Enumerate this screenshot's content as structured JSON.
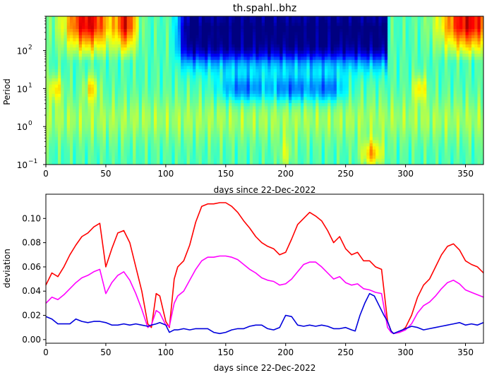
{
  "chart_data": [
    {
      "type": "heatmap",
      "title": "th.spahl..bhz",
      "xlabel": "days since 22-Dec-2022",
      "ylabel": "Period",
      "xlim": [
        0,
        365
      ],
      "ylim": [
        0.1,
        800
      ],
      "yscale": "log",
      "colormap": "jet",
      "x_ticks": [
        0,
        50,
        100,
        150,
        200,
        250,
        300,
        350
      ],
      "y_ticks": [
        {
          "value": 0.1,
          "label": "10",
          "exp": "−1"
        },
        {
          "value": 1,
          "label": "10",
          "exp": "0"
        },
        {
          "value": 10,
          "label": "10",
          "exp": "1"
        },
        {
          "value": 100,
          "label": "10",
          "exp": "2"
        }
      ]
    },
    {
      "type": "line",
      "title": "",
      "xlabel": "days since 22-Dec-2022",
      "ylabel": "deviation",
      "xlim": [
        0,
        365
      ],
      "ylim": [
        -0.003,
        0.12
      ],
      "x_ticks": [
        0,
        50,
        100,
        150,
        200,
        250,
        300,
        350
      ],
      "y_ticks": [
        "0.00",
        "0.02",
        "0.04",
        "0.06",
        "0.08",
        "0.10"
      ],
      "series": [
        {
          "color": "#ff0000",
          "x": [
            0,
            5,
            10,
            15,
            20,
            25,
            30,
            35,
            40,
            45,
            50,
            55,
            60,
            65,
            70,
            75,
            80,
            85,
            88,
            92,
            95,
            100,
            103,
            107,
            110,
            115,
            120,
            125,
            130,
            135,
            140,
            145,
            150,
            155,
            160,
            165,
            170,
            175,
            180,
            185,
            190,
            195,
            200,
            205,
            210,
            215,
            220,
            225,
            230,
            235,
            240,
            245,
            250,
            255,
            260,
            265,
            270,
            275,
            280,
            285,
            288,
            290,
            295,
            300,
            305,
            310,
            315,
            320,
            325,
            330,
            335,
            340,
            345,
            350,
            355,
            360,
            365
          ],
          "values": [
            0.045,
            0.055,
            0.052,
            0.06,
            0.07,
            0.078,
            0.085,
            0.088,
            0.093,
            0.096,
            0.06,
            0.075,
            0.088,
            0.09,
            0.08,
            0.06,
            0.04,
            0.013,
            0.01,
            0.038,
            0.036,
            0.015,
            0.01,
            0.05,
            0.06,
            0.065,
            0.078,
            0.097,
            0.11,
            0.112,
            0.112,
            0.113,
            0.113,
            0.11,
            0.105,
            0.098,
            0.092,
            0.085,
            0.08,
            0.077,
            0.075,
            0.07,
            0.072,
            0.083,
            0.095,
            0.1,
            0.105,
            0.102,
            0.098,
            0.09,
            0.08,
            0.085,
            0.075,
            0.07,
            0.072,
            0.065,
            0.065,
            0.06,
            0.058,
            0.015,
            0.007,
            0.005,
            0.006,
            0.01,
            0.02,
            0.035,
            0.045,
            0.05,
            0.06,
            0.07,
            0.077,
            0.079,
            0.074,
            0.065,
            0.062,
            0.06,
            0.055
          ]
        },
        {
          "color": "#ff00ff",
          "x": [
            0,
            5,
            10,
            15,
            20,
            25,
            30,
            35,
            40,
            45,
            50,
            55,
            60,
            65,
            70,
            75,
            80,
            85,
            88,
            92,
            95,
            100,
            103,
            107,
            110,
            115,
            120,
            125,
            130,
            135,
            140,
            145,
            150,
            155,
            160,
            165,
            170,
            175,
            180,
            185,
            190,
            195,
            200,
            205,
            210,
            215,
            220,
            225,
            230,
            235,
            240,
            245,
            250,
            255,
            260,
            265,
            270,
            275,
            280,
            285,
            288,
            290,
            295,
            300,
            305,
            310,
            315,
            320,
            325,
            330,
            335,
            340,
            345,
            350,
            355,
            360,
            365
          ],
          "values": [
            0.03,
            0.035,
            0.033,
            0.037,
            0.042,
            0.047,
            0.051,
            0.053,
            0.056,
            0.058,
            0.038,
            0.047,
            0.053,
            0.056,
            0.049,
            0.038,
            0.025,
            0.01,
            0.012,
            0.024,
            0.022,
            0.012,
            0.011,
            0.03,
            0.036,
            0.04,
            0.049,
            0.058,
            0.065,
            0.068,
            0.068,
            0.069,
            0.069,
            0.068,
            0.066,
            0.062,
            0.058,
            0.055,
            0.051,
            0.049,
            0.048,
            0.045,
            0.046,
            0.05,
            0.056,
            0.062,
            0.064,
            0.064,
            0.06,
            0.055,
            0.05,
            0.052,
            0.047,
            0.045,
            0.046,
            0.042,
            0.041,
            0.039,
            0.038,
            0.01,
            0.006,
            0.005,
            0.006,
            0.008,
            0.013,
            0.022,
            0.028,
            0.031,
            0.036,
            0.042,
            0.047,
            0.049,
            0.046,
            0.041,
            0.039,
            0.037,
            0.035
          ]
        },
        {
          "color": "#0000dd",
          "x": [
            0,
            5,
            10,
            15,
            20,
            25,
            30,
            35,
            40,
            45,
            50,
            55,
            60,
            65,
            70,
            75,
            80,
            85,
            88,
            92,
            95,
            100,
            103,
            107,
            110,
            115,
            120,
            125,
            130,
            135,
            140,
            145,
            150,
            155,
            160,
            165,
            170,
            175,
            180,
            185,
            190,
            195,
            200,
            205,
            210,
            215,
            220,
            225,
            230,
            235,
            240,
            245,
            250,
            255,
            258,
            262,
            266,
            270,
            274,
            278,
            282,
            285,
            288,
            290,
            295,
            300,
            305,
            310,
            315,
            320,
            325,
            330,
            335,
            340,
            345,
            350,
            355,
            360,
            365
          ],
          "values": [
            0.019,
            0.017,
            0.013,
            0.013,
            0.013,
            0.017,
            0.015,
            0.014,
            0.015,
            0.015,
            0.014,
            0.012,
            0.012,
            0.013,
            0.012,
            0.013,
            0.012,
            0.011,
            0.012,
            0.013,
            0.014,
            0.012,
            0.006,
            0.008,
            0.008,
            0.009,
            0.008,
            0.009,
            0.009,
            0.009,
            0.006,
            0.005,
            0.006,
            0.008,
            0.009,
            0.009,
            0.011,
            0.012,
            0.012,
            0.009,
            0.008,
            0.01,
            0.02,
            0.019,
            0.012,
            0.011,
            0.012,
            0.011,
            0.012,
            0.011,
            0.009,
            0.009,
            0.01,
            0.008,
            0.007,
            0.02,
            0.03,
            0.038,
            0.036,
            0.028,
            0.02,
            0.015,
            0.007,
            0.005,
            0.007,
            0.009,
            0.011,
            0.01,
            0.008,
            0.009,
            0.01,
            0.011,
            0.012,
            0.013,
            0.014,
            0.012,
            0.013,
            0.012,
            0.014
          ]
        }
      ]
    }
  ]
}
